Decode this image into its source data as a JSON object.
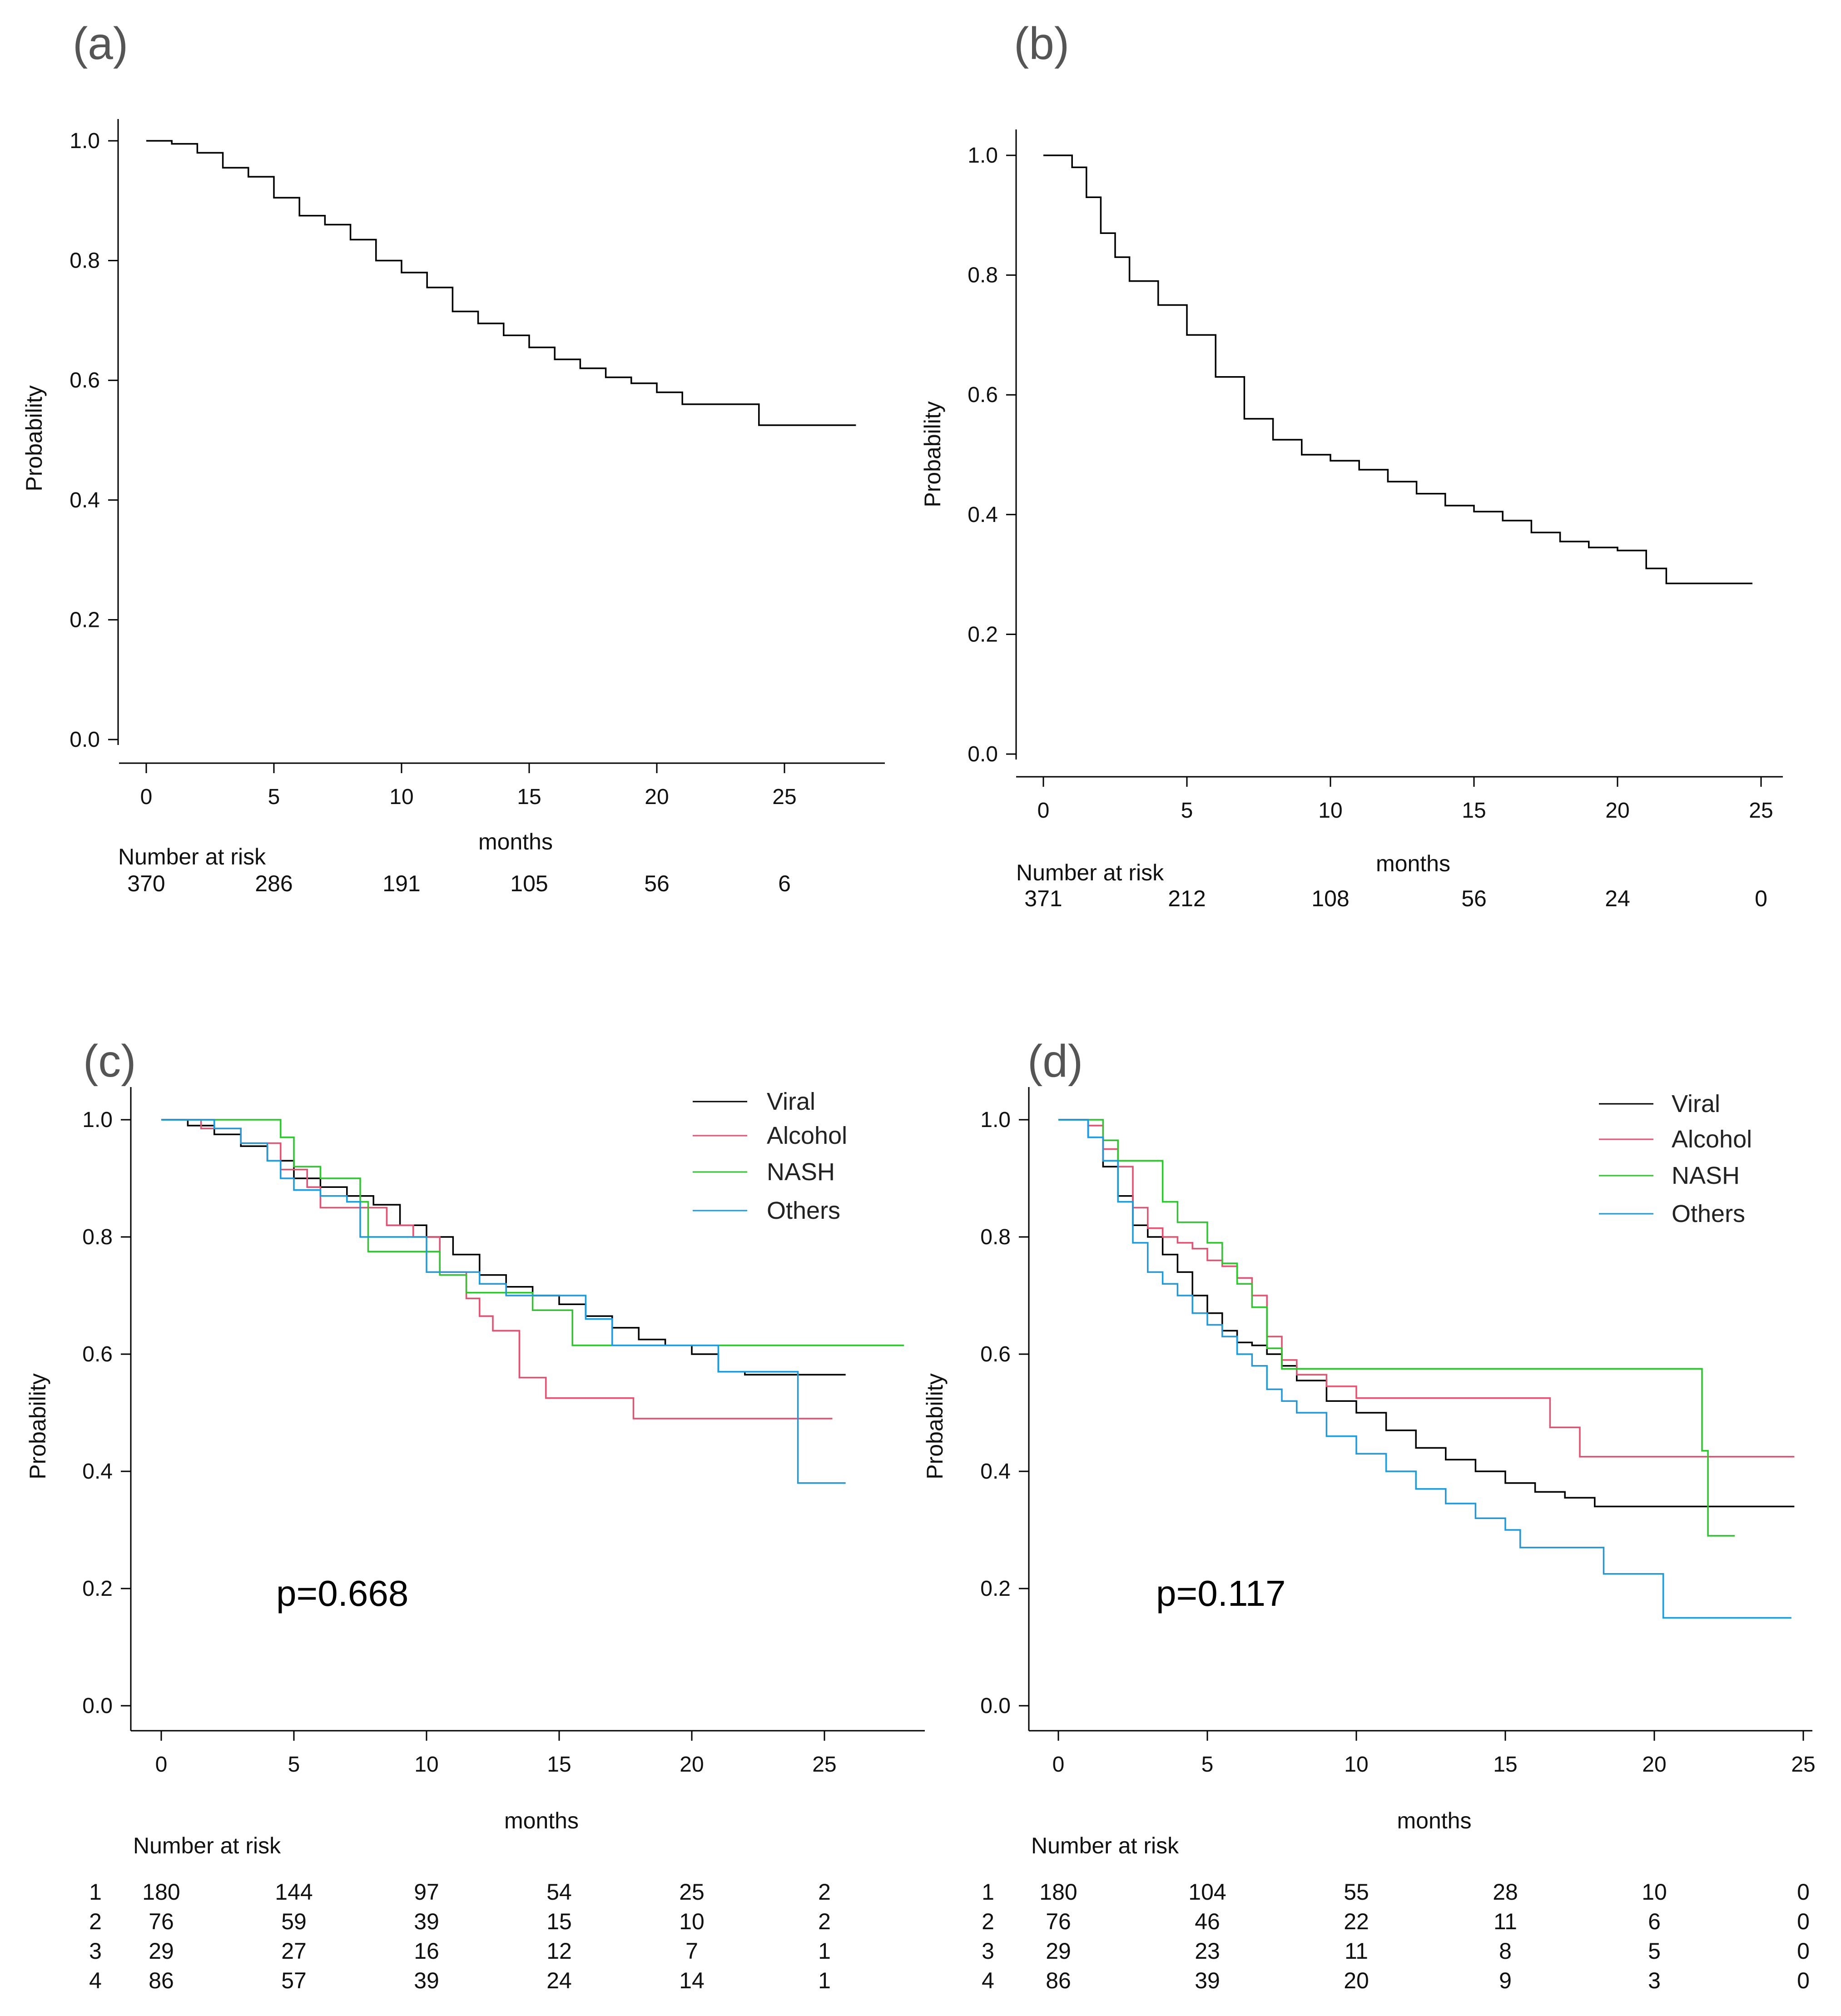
{
  "chart_data": [
    {
      "panel": "(a)",
      "type": "line",
      "xlabel": "months",
      "ylabel": "Probability",
      "xlim": [
        0,
        28
      ],
      "ylim": [
        0,
        1
      ],
      "x_ticks": [
        0,
        5,
        10,
        15,
        20,
        25
      ],
      "y_ticks": [
        "0.0",
        "0.2",
        "0.4",
        "0.6",
        "0.8",
        "1.0"
      ],
      "risk_title": "Number at risk",
      "risk_rows": [
        {
          "label": "",
          "values": [
            370,
            286,
            191,
            105,
            56,
            6
          ]
        }
      ],
      "series": [
        {
          "name": "",
          "color": "#000000",
          "x": [
            0,
            1,
            2,
            3,
            4,
            5,
            6,
            7,
            8,
            9,
            10,
            11,
            12,
            13,
            14,
            15,
            16,
            17,
            18,
            19,
            20,
            21,
            22,
            23,
            24,
            25,
            26,
            27.8
          ],
          "y": [
            1.0,
            0.995,
            0.98,
            0.955,
            0.94,
            0.905,
            0.875,
            0.86,
            0.835,
            0.8,
            0.78,
            0.755,
            0.715,
            0.695,
            0.675,
            0.655,
            0.635,
            0.62,
            0.605,
            0.595,
            0.58,
            0.56,
            0.56,
            0.56,
            0.525,
            0.525,
            0.525,
            0.525
          ]
        }
      ],
      "legend": [],
      "pvalue": ""
    },
    {
      "panel": "(b)",
      "type": "line",
      "xlabel": "months",
      "ylabel": "Probability",
      "xlim": [
        0,
        26
      ],
      "ylim": [
        0,
        1
      ],
      "x_ticks": [
        0,
        5,
        10,
        15,
        20,
        25
      ],
      "y_ticks": [
        "0.0",
        "0.2",
        "0.4",
        "0.6",
        "0.8",
        "1.0"
      ],
      "risk_title": "Number at risk",
      "risk_rows": [
        {
          "label": "",
          "values": [
            371,
            212,
            108,
            56,
            24,
            0
          ]
        }
      ],
      "series": [
        {
          "name": "",
          "color": "#000000",
          "x": [
            0,
            0.5,
            1,
            1.5,
            2,
            2.5,
            3,
            4,
            5,
            6,
            7,
            8,
            9,
            10,
            11,
            12,
            13,
            14,
            15,
            16,
            17,
            18,
            19,
            20,
            21,
            21.7,
            24.7
          ],
          "y": [
            1.0,
            1.0,
            0.98,
            0.93,
            0.87,
            0.83,
            0.79,
            0.75,
            0.7,
            0.63,
            0.56,
            0.525,
            0.5,
            0.49,
            0.475,
            0.455,
            0.435,
            0.415,
            0.405,
            0.39,
            0.37,
            0.355,
            0.345,
            0.34,
            0.31,
            0.285,
            0.285
          ]
        }
      ],
      "legend": [],
      "pvalue": ""
    },
    {
      "panel": "(c)",
      "type": "line",
      "xlabel": "months",
      "ylabel": "Probability",
      "xlim": [
        0,
        28
      ],
      "ylim": [
        0,
        1
      ],
      "x_ticks": [
        0,
        5,
        10,
        15,
        20,
        25
      ],
      "y_ticks": [
        "0.0",
        "0.2",
        "0.4",
        "0.6",
        "0.8",
        "1.0"
      ],
      "risk_title": "Number at risk",
      "risk_rows": [
        {
          "label": "1",
          "values": [
            180,
            144,
            97,
            54,
            25,
            2
          ]
        },
        {
          "label": "2",
          "values": [
            76,
            59,
            39,
            15,
            10,
            2
          ]
        },
        {
          "label": "3",
          "values": [
            29,
            27,
            16,
            12,
            7,
            1
          ]
        },
        {
          "label": "4",
          "values": [
            86,
            57,
            39,
            24,
            14,
            1
          ]
        }
      ],
      "series": [
        {
          "name": "Viral",
          "color": "#000000",
          "x": [
            0,
            1,
            2,
            3,
            4,
            5,
            6,
            7,
            8,
            9,
            10,
            11,
            12,
            13,
            14,
            15,
            16,
            17,
            18,
            19,
            20,
            21,
            22,
            23,
            24,
            25,
            25.8
          ],
          "y": [
            1.0,
            0.99,
            0.975,
            0.955,
            0.93,
            0.9,
            0.885,
            0.87,
            0.855,
            0.82,
            0.8,
            0.77,
            0.735,
            0.715,
            0.7,
            0.685,
            0.665,
            0.645,
            0.625,
            0.615,
            0.6,
            0.57,
            0.565,
            0.565,
            0.565,
            0.565,
            0.565
          ]
        },
        {
          "name": "Alcohol",
          "color": "#e8506f",
          "x": [
            0,
            1.5,
            3,
            4.5,
            5.5,
            6,
            7.5,
            8.5,
            9.5,
            10.5,
            11.5,
            12,
            12.5,
            13.5,
            14.5,
            15,
            16,
            17.8,
            18,
            22,
            24,
            25.3
          ],
          "y": [
            1.0,
            0.985,
            0.96,
            0.915,
            0.885,
            0.85,
            0.85,
            0.82,
            0.8,
            0.74,
            0.695,
            0.665,
            0.64,
            0.56,
            0.525,
            0.525,
            0.525,
            0.49,
            0.49,
            0.49,
            0.49,
            0.49
          ]
        },
        {
          "name": "NASH",
          "color": "#2ac82a",
          "x": [
            0,
            3,
            4.5,
            5,
            6,
            7.5,
            7.8,
            9.5,
            10.5,
            11.5,
            12,
            13,
            14,
            15,
            15.5,
            20,
            24,
            28
          ],
          "y": [
            1.0,
            1.0,
            0.97,
            0.92,
            0.9,
            0.86,
            0.775,
            0.775,
            0.735,
            0.705,
            0.705,
            0.705,
            0.675,
            0.675,
            0.615,
            0.615,
            0.615,
            0.615
          ]
        },
        {
          "name": "Others",
          "color": "#1a9be0",
          "x": [
            0,
            1,
            2,
            3,
            4,
            4.5,
            5,
            6,
            7,
            7.5,
            8,
            9,
            10,
            11,
            11.5,
            12,
            13,
            14,
            15,
            16,
            17,
            18,
            19,
            20,
            21,
            22,
            23,
            24,
            25,
            25.8
          ],
          "y": [
            1.0,
            1.0,
            0.985,
            0.96,
            0.93,
            0.9,
            0.88,
            0.87,
            0.86,
            0.8,
            0.8,
            0.8,
            0.74,
            0.74,
            0.74,
            0.72,
            0.7,
            0.7,
            0.7,
            0.66,
            0.615,
            0.615,
            0.615,
            0.615,
            0.57,
            0.57,
            0.57,
            0.38,
            0.38,
            0.38
          ]
        }
      ],
      "legend": [
        {
          "label": "Viral",
          "color": "#000000"
        },
        {
          "label": "Alcohol",
          "color": "#e8506f"
        },
        {
          "label": "NASH",
          "color": "#2ac82a"
        },
        {
          "label": "Others",
          "color": "#1a9be0"
        }
      ],
      "pvalue": "p=0.668"
    },
    {
      "panel": "(d)",
      "type": "line",
      "xlabel": "months",
      "ylabel": "Probability",
      "xlim": [
        0,
        25
      ],
      "ylim": [
        0,
        1
      ],
      "x_ticks": [
        0,
        5,
        10,
        15,
        20,
        25
      ],
      "y_ticks": [
        "0.0",
        "0.2",
        "0.4",
        "0.6",
        "0.8",
        "1.0"
      ],
      "risk_title": "Number at risk",
      "risk_rows": [
        {
          "label": "1",
          "values": [
            180,
            104,
            55,
            28,
            10,
            0
          ]
        },
        {
          "label": "2",
          "values": [
            76,
            46,
            22,
            11,
            6,
            0
          ]
        },
        {
          "label": "3",
          "values": [
            29,
            23,
            11,
            8,
            5,
            0
          ]
        },
        {
          "label": "4",
          "values": [
            86,
            39,
            20,
            9,
            3,
            0
          ]
        }
      ],
      "series": [
        {
          "name": "Viral",
          "color": "#000000",
          "x": [
            0,
            0.8,
            1,
            1.5,
            2,
            2.5,
            3,
            3.5,
            4,
            4.5,
            5,
            5.5,
            6,
            6.5,
            7,
            7.5,
            8,
            9,
            10,
            11,
            12,
            13,
            14,
            15,
            16,
            17,
            18,
            20,
            22,
            24.7
          ],
          "y": [
            1.0,
            1.0,
            0.97,
            0.92,
            0.87,
            0.82,
            0.8,
            0.77,
            0.74,
            0.7,
            0.67,
            0.64,
            0.62,
            0.615,
            0.6,
            0.58,
            0.555,
            0.52,
            0.5,
            0.47,
            0.44,
            0.42,
            0.4,
            0.38,
            0.365,
            0.355,
            0.34,
            0.34,
            0.34,
            0.34
          ]
        },
        {
          "name": "Alcohol",
          "color": "#e8506f",
          "x": [
            0,
            1,
            1.5,
            2,
            2.5,
            3,
            3.5,
            4,
            4.5,
            5,
            5.5,
            6,
            6.5,
            7,
            7.5,
            8,
            9,
            10,
            12,
            14,
            16,
            16.5,
            17.5,
            18,
            20,
            24.7
          ],
          "y": [
            1.0,
            0.99,
            0.95,
            0.92,
            0.85,
            0.815,
            0.8,
            0.79,
            0.78,
            0.76,
            0.75,
            0.73,
            0.7,
            0.63,
            0.59,
            0.565,
            0.545,
            0.525,
            0.525,
            0.525,
            0.525,
            0.475,
            0.425,
            0.425,
            0.425,
            0.425
          ]
        },
        {
          "name": "NASH",
          "color": "#2ac82a",
          "x": [
            0,
            1.3,
            1.5,
            2,
            3,
            3.5,
            4,
            5,
            5.5,
            6,
            6.5,
            7,
            7.5,
            10,
            15,
            20,
            21.3,
            21.6,
            21.8,
            22.7
          ],
          "y": [
            1.0,
            1.0,
            0.965,
            0.93,
            0.93,
            0.86,
            0.825,
            0.79,
            0.755,
            0.72,
            0.68,
            0.61,
            0.575,
            0.575,
            0.575,
            0.575,
            0.575,
            0.435,
            0.29,
            0.29
          ]
        },
        {
          "name": "Others",
          "color": "#1a9be0",
          "x": [
            0,
            0.5,
            1,
            1.5,
            2,
            2.5,
            3,
            3.5,
            4,
            4.5,
            5,
            5.5,
            6,
            6.5,
            7,
            7.5,
            8,
            9,
            10,
            11,
            12,
            13,
            14,
            15,
            15.5,
            17,
            18,
            18.3,
            20,
            20.3,
            24.6
          ],
          "y": [
            1.0,
            1.0,
            0.97,
            0.93,
            0.86,
            0.79,
            0.74,
            0.72,
            0.7,
            0.67,
            0.65,
            0.63,
            0.6,
            0.58,
            0.54,
            0.52,
            0.5,
            0.46,
            0.43,
            0.4,
            0.37,
            0.345,
            0.32,
            0.3,
            0.27,
            0.27,
            0.27,
            0.225,
            0.225,
            0.15,
            0.15
          ]
        }
      ],
      "legend": [
        {
          "label": "Viral",
          "color": "#000000"
        },
        {
          "label": "Alcohol",
          "color": "#e8506f"
        },
        {
          "label": "NASH",
          "color": "#2ac82a"
        },
        {
          "label": "Others",
          "color": "#1a9be0"
        }
      ],
      "pvalue": "p=0.117"
    }
  ]
}
